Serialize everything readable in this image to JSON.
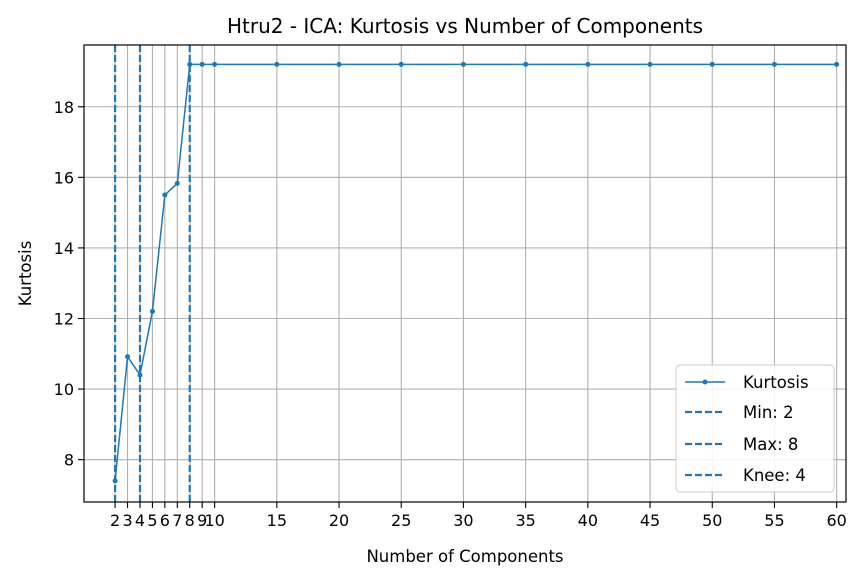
{
  "chart_data": {
    "type": "line",
    "title": "Htru2 - ICA: Kurtosis vs Number of Components",
    "xlabel": "Number of Components",
    "ylabel": "Kurtosis",
    "xlim": [
      -0.5,
      60.75
    ],
    "ylim": [
      6.8,
      19.75
    ],
    "x_ticks": [
      2,
      3,
      4,
      5,
      6,
      7,
      8,
      9,
      10,
      15,
      20,
      25,
      30,
      35,
      40,
      45,
      50,
      55,
      60
    ],
    "x_tick_labels": [
      "2",
      "3",
      "4",
      "5",
      "6",
      "7",
      "8",
      "9",
      "10",
      "15",
      "20",
      "25",
      "30",
      "35",
      "40",
      "45",
      "50",
      "55",
      "60"
    ],
    "y_ticks": [
      8,
      10,
      12,
      14,
      16,
      18
    ],
    "y_tick_labels": [
      "8",
      "10",
      "12",
      "14",
      "16",
      "18"
    ],
    "grid": true,
    "legend_position": "bottom-right",
    "series": [
      {
        "name": "Kurtosis",
        "color": "#1f77b4",
        "marker": "circle",
        "x": [
          2,
          3,
          4,
          5,
          6,
          7,
          8,
          9,
          10,
          15,
          20,
          25,
          30,
          35,
          40,
          45,
          50,
          55,
          60
        ],
        "y": [
          7.4,
          10.92,
          10.4,
          12.2,
          15.5,
          15.83,
          19.2,
          19.2,
          19.2,
          19.2,
          19.2,
          19.2,
          19.2,
          19.2,
          19.2,
          19.2,
          19.2,
          19.2,
          19.2
        ]
      }
    ],
    "vlines": [
      {
        "name": "Min: 2",
        "x": 2,
        "color": "#1f77b4",
        "style": "dashed"
      },
      {
        "name": "Max: 8",
        "x": 8,
        "color": "#1f77b4",
        "style": "dashed"
      },
      {
        "name": "Knee: 4",
        "x": 4,
        "color": "#1f77b4",
        "style": "dashed"
      }
    ]
  }
}
